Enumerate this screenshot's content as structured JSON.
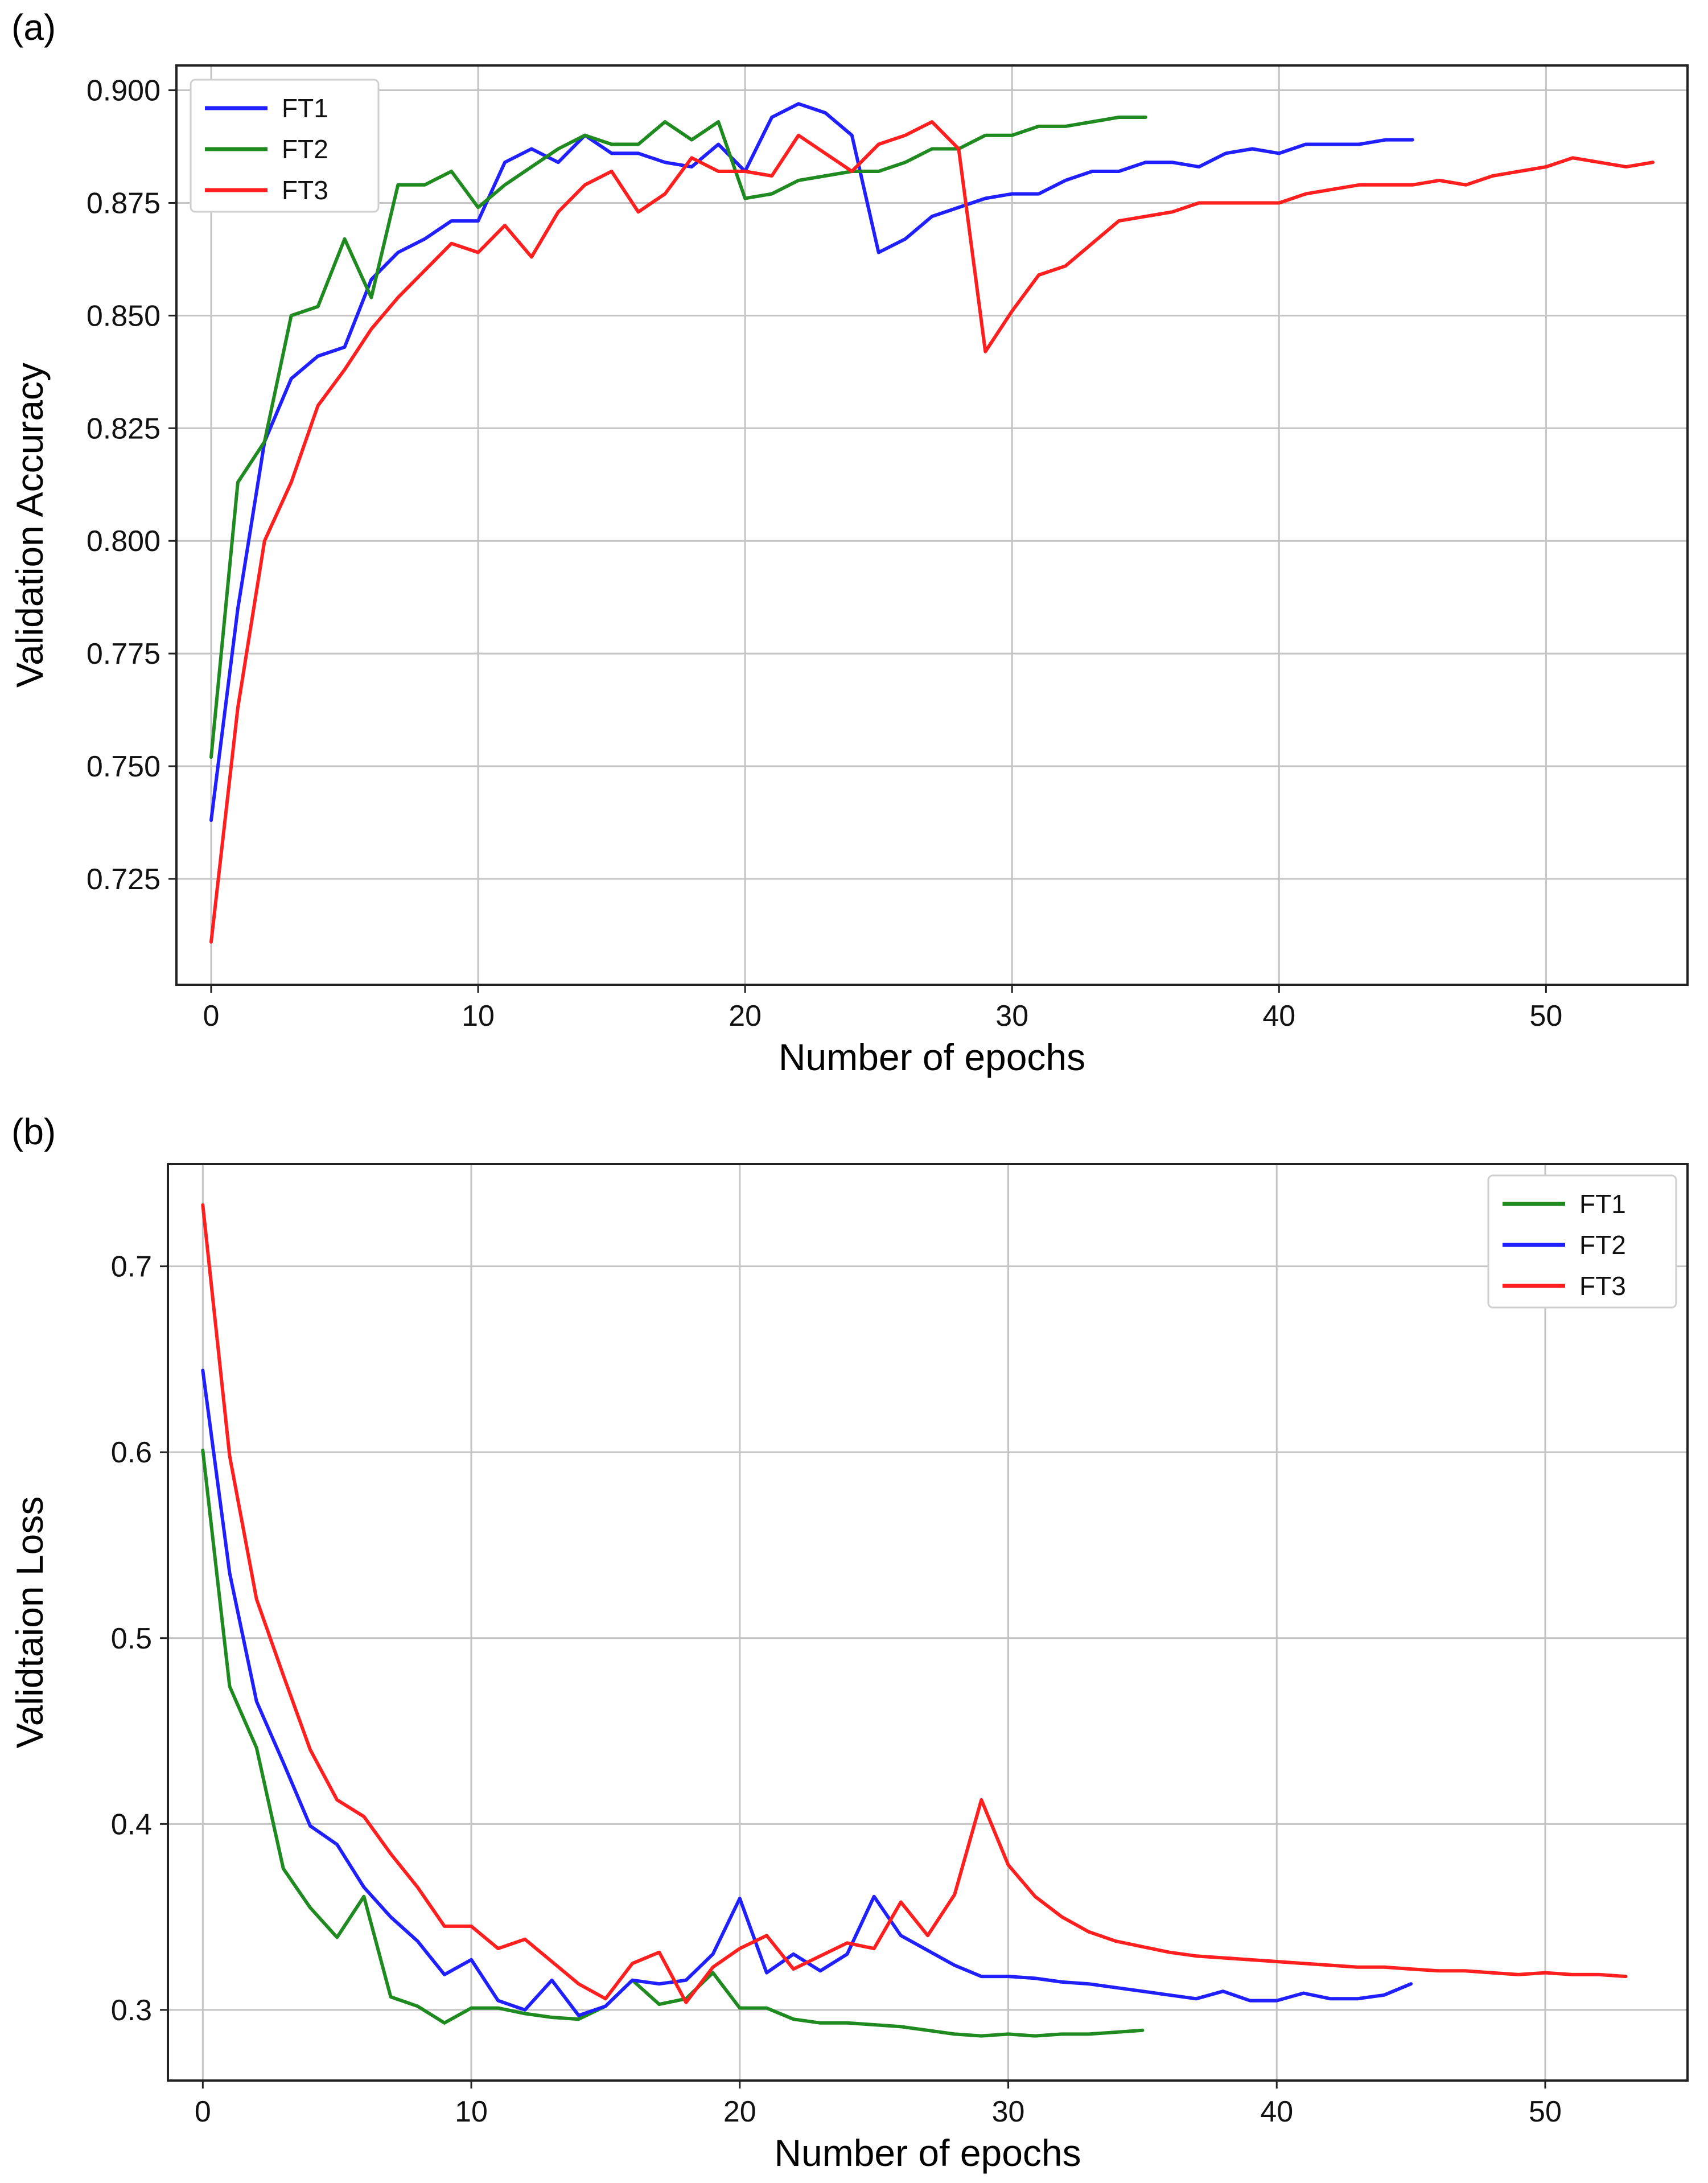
{
  "chart_data": [
    {
      "panel_label": "(a)",
      "type": "line",
      "title": "",
      "xlabel": "Number of epochs",
      "ylabel": "Validation Accuracy",
      "xlim": [
        -1.3,
        55.3
      ],
      "ylim": [
        0.7015,
        0.9055
      ],
      "xticks": [
        0,
        10,
        20,
        30,
        40,
        50
      ],
      "yticks": [
        0.725,
        0.75,
        0.775,
        0.8,
        0.825,
        0.85,
        0.875,
        0.9
      ],
      "ytick_labels": [
        "0.725",
        "0.750",
        "0.775",
        "0.800",
        "0.825",
        "0.850",
        "0.875",
        "0.900"
      ],
      "grid": true,
      "legend_position": "top-left",
      "series": [
        {
          "name": "FT1",
          "color": "#1f1fff",
          "x": [
            0,
            1,
            2,
            3,
            4,
            5,
            6,
            7,
            8,
            9,
            10,
            11,
            12,
            13,
            14,
            15,
            16,
            17,
            18,
            19,
            20,
            21,
            22,
            23,
            24,
            25,
            26,
            27,
            28,
            29,
            30,
            31,
            32,
            33,
            34,
            35,
            36,
            37,
            38,
            39,
            40,
            41,
            42,
            43,
            44,
            45
          ],
          "y": [
            0.738,
            0.785,
            0.822,
            0.836,
            0.841,
            0.843,
            0.858,
            0.864,
            0.867,
            0.871,
            0.871,
            0.884,
            0.887,
            0.884,
            0.89,
            0.886,
            0.886,
            0.884,
            0.883,
            0.888,
            0.882,
            0.894,
            0.897,
            0.895,
            0.89,
            0.864,
            0.867,
            0.872,
            0.874,
            0.876,
            0.877,
            0.877,
            0.88,
            0.882,
            0.882,
            0.884,
            0.884,
            0.883,
            0.886,
            0.887,
            0.886,
            0.888,
            0.888,
            0.888,
            0.889,
            0.889
          ]
        },
        {
          "name": "FT2",
          "color": "#1f8a1f",
          "x": [
            0,
            1,
            2,
            3,
            4,
            5,
            6,
            7,
            8,
            9,
            10,
            11,
            12,
            13,
            14,
            15,
            16,
            17,
            18,
            19,
            20,
            21,
            22,
            23,
            24,
            25,
            26,
            27,
            28,
            29,
            30,
            31,
            32,
            33,
            34,
            35
          ],
          "y": [
            0.752,
            0.813,
            0.822,
            0.85,
            0.852,
            0.867,
            0.854,
            0.879,
            0.879,
            0.882,
            0.874,
            0.879,
            0.883,
            0.887,
            0.89,
            0.888,
            0.888,
            0.893,
            0.889,
            0.893,
            0.876,
            0.877,
            0.88,
            0.881,
            0.882,
            0.882,
            0.884,
            0.887,
            0.887,
            0.89,
            0.89,
            0.892,
            0.892,
            0.893,
            0.894,
            0.894
          ]
        },
        {
          "name": "FT3",
          "color": "#ff1f1f",
          "x": [
            0,
            1,
            2,
            3,
            4,
            5,
            6,
            7,
            8,
            9,
            10,
            11,
            12,
            13,
            14,
            15,
            16,
            17,
            18,
            19,
            20,
            21,
            22,
            23,
            24,
            25,
            26,
            27,
            28,
            29,
            30,
            31,
            32,
            33,
            34,
            35,
            36,
            37,
            38,
            39,
            40,
            41,
            42,
            43,
            44,
            45,
            46,
            47,
            48,
            49,
            50,
            51,
            52,
            53,
            54
          ],
          "y": [
            0.711,
            0.763,
            0.8,
            0.813,
            0.83,
            0.838,
            0.847,
            0.854,
            0.86,
            0.866,
            0.864,
            0.87,
            0.863,
            0.873,
            0.879,
            0.882,
            0.873,
            0.877,
            0.885,
            0.882,
            0.882,
            0.881,
            0.89,
            0.886,
            0.882,
            0.888,
            0.89,
            0.893,
            0.887,
            0.842,
            0.851,
            0.859,
            0.861,
            0.866,
            0.871,
            0.872,
            0.873,
            0.875,
            0.875,
            0.875,
            0.875,
            0.877,
            0.878,
            0.879,
            0.879,
            0.879,
            0.88,
            0.879,
            0.881,
            0.882,
            0.883,
            0.885,
            0.884,
            0.883,
            0.884
          ]
        }
      ]
    },
    {
      "panel_label": "(b)",
      "type": "line",
      "title": "",
      "xlabel": "Number of epochs",
      "ylabel": "Validtaion Loss",
      "xlim": [
        -1.3,
        55.3
      ],
      "ylim": [
        0.262,
        0.755
      ],
      "xticks": [
        0,
        10,
        20,
        30,
        40,
        50
      ],
      "yticks": [
        0.3,
        0.4,
        0.5,
        0.6,
        0.7
      ],
      "ytick_labels": [
        "0.3",
        "0.4",
        "0.5",
        "0.6",
        "0.7"
      ],
      "grid": true,
      "legend_position": "top-right",
      "series": [
        {
          "name": "FT1",
          "color": "#1f8a1f",
          "x": [
            0,
            1,
            2,
            3,
            4,
            5,
            6,
            7,
            8,
            9,
            10,
            11,
            12,
            13,
            14,
            15,
            16,
            17,
            18,
            19,
            20,
            21,
            22,
            23,
            24,
            25,
            26,
            27,
            28,
            29,
            30,
            31,
            32,
            33,
            34,
            35
          ],
          "y": [
            0.601,
            0.474,
            0.441,
            0.376,
            0.355,
            0.339,
            0.361,
            0.307,
            0.302,
            0.293,
            0.301,
            0.301,
            0.298,
            0.296,
            0.295,
            0.302,
            0.316,
            0.303,
            0.306,
            0.32,
            0.301,
            0.301,
            0.295,
            0.293,
            0.293,
            0.292,
            0.291,
            0.289,
            0.287,
            0.286,
            0.287,
            0.286,
            0.287,
            0.287,
            0.288,
            0.289
          ]
        },
        {
          "name": "FT2",
          "color": "#1f1fff",
          "x": [
            0,
            1,
            2,
            3,
            4,
            5,
            6,
            7,
            8,
            9,
            10,
            11,
            12,
            13,
            14,
            15,
            16,
            17,
            18,
            19,
            20,
            21,
            22,
            23,
            24,
            25,
            26,
            27,
            28,
            29,
            30,
            31,
            32,
            33,
            34,
            35,
            36,
            37,
            38,
            39,
            40,
            41,
            42,
            43,
            44,
            45
          ],
          "y": [
            0.644,
            0.535,
            0.466,
            0.433,
            0.399,
            0.389,
            0.366,
            0.35,
            0.337,
            0.319,
            0.327,
            0.305,
            0.3,
            0.316,
            0.297,
            0.302,
            0.316,
            0.314,
            0.316,
            0.33,
            0.36,
            0.32,
            0.33,
            0.321,
            0.33,
            0.361,
            0.34,
            0.332,
            0.324,
            0.318,
            0.318,
            0.317,
            0.315,
            0.314,
            0.312,
            0.31,
            0.308,
            0.306,
            0.31,
            0.305,
            0.305,
            0.309,
            0.306,
            0.306,
            0.308,
            0.314
          ]
        },
        {
          "name": "FT3",
          "color": "#ff1f1f",
          "x": [
            0,
            1,
            2,
            3,
            4,
            5,
            6,
            7,
            8,
            9,
            10,
            11,
            12,
            13,
            14,
            15,
            16,
            17,
            18,
            19,
            20,
            21,
            22,
            23,
            24,
            25,
            26,
            27,
            28,
            29,
            30,
            31,
            32,
            33,
            34,
            35,
            36,
            37,
            38,
            39,
            40,
            41,
            42,
            43,
            44,
            45,
            46,
            47,
            48,
            49,
            50,
            51,
            52,
            53
          ],
          "y": [
            0.733,
            0.598,
            0.521,
            0.48,
            0.44,
            0.413,
            0.404,
            0.384,
            0.366,
            0.345,
            0.345,
            0.333,
            0.338,
            0.326,
            0.314,
            0.306,
            0.325,
            0.331,
            0.304,
            0.323,
            0.333,
            0.34,
            0.322,
            0.329,
            0.336,
            0.333,
            0.358,
            0.34,
            0.362,
            0.413,
            0.378,
            0.361,
            0.35,
            0.342,
            0.337,
            0.334,
            0.331,
            0.329,
            0.328,
            0.327,
            0.326,
            0.325,
            0.324,
            0.323,
            0.323,
            0.322,
            0.321,
            0.321,
            0.32,
            0.319,
            0.32,
            0.319,
            0.319,
            0.318
          ]
        }
      ]
    }
  ]
}
